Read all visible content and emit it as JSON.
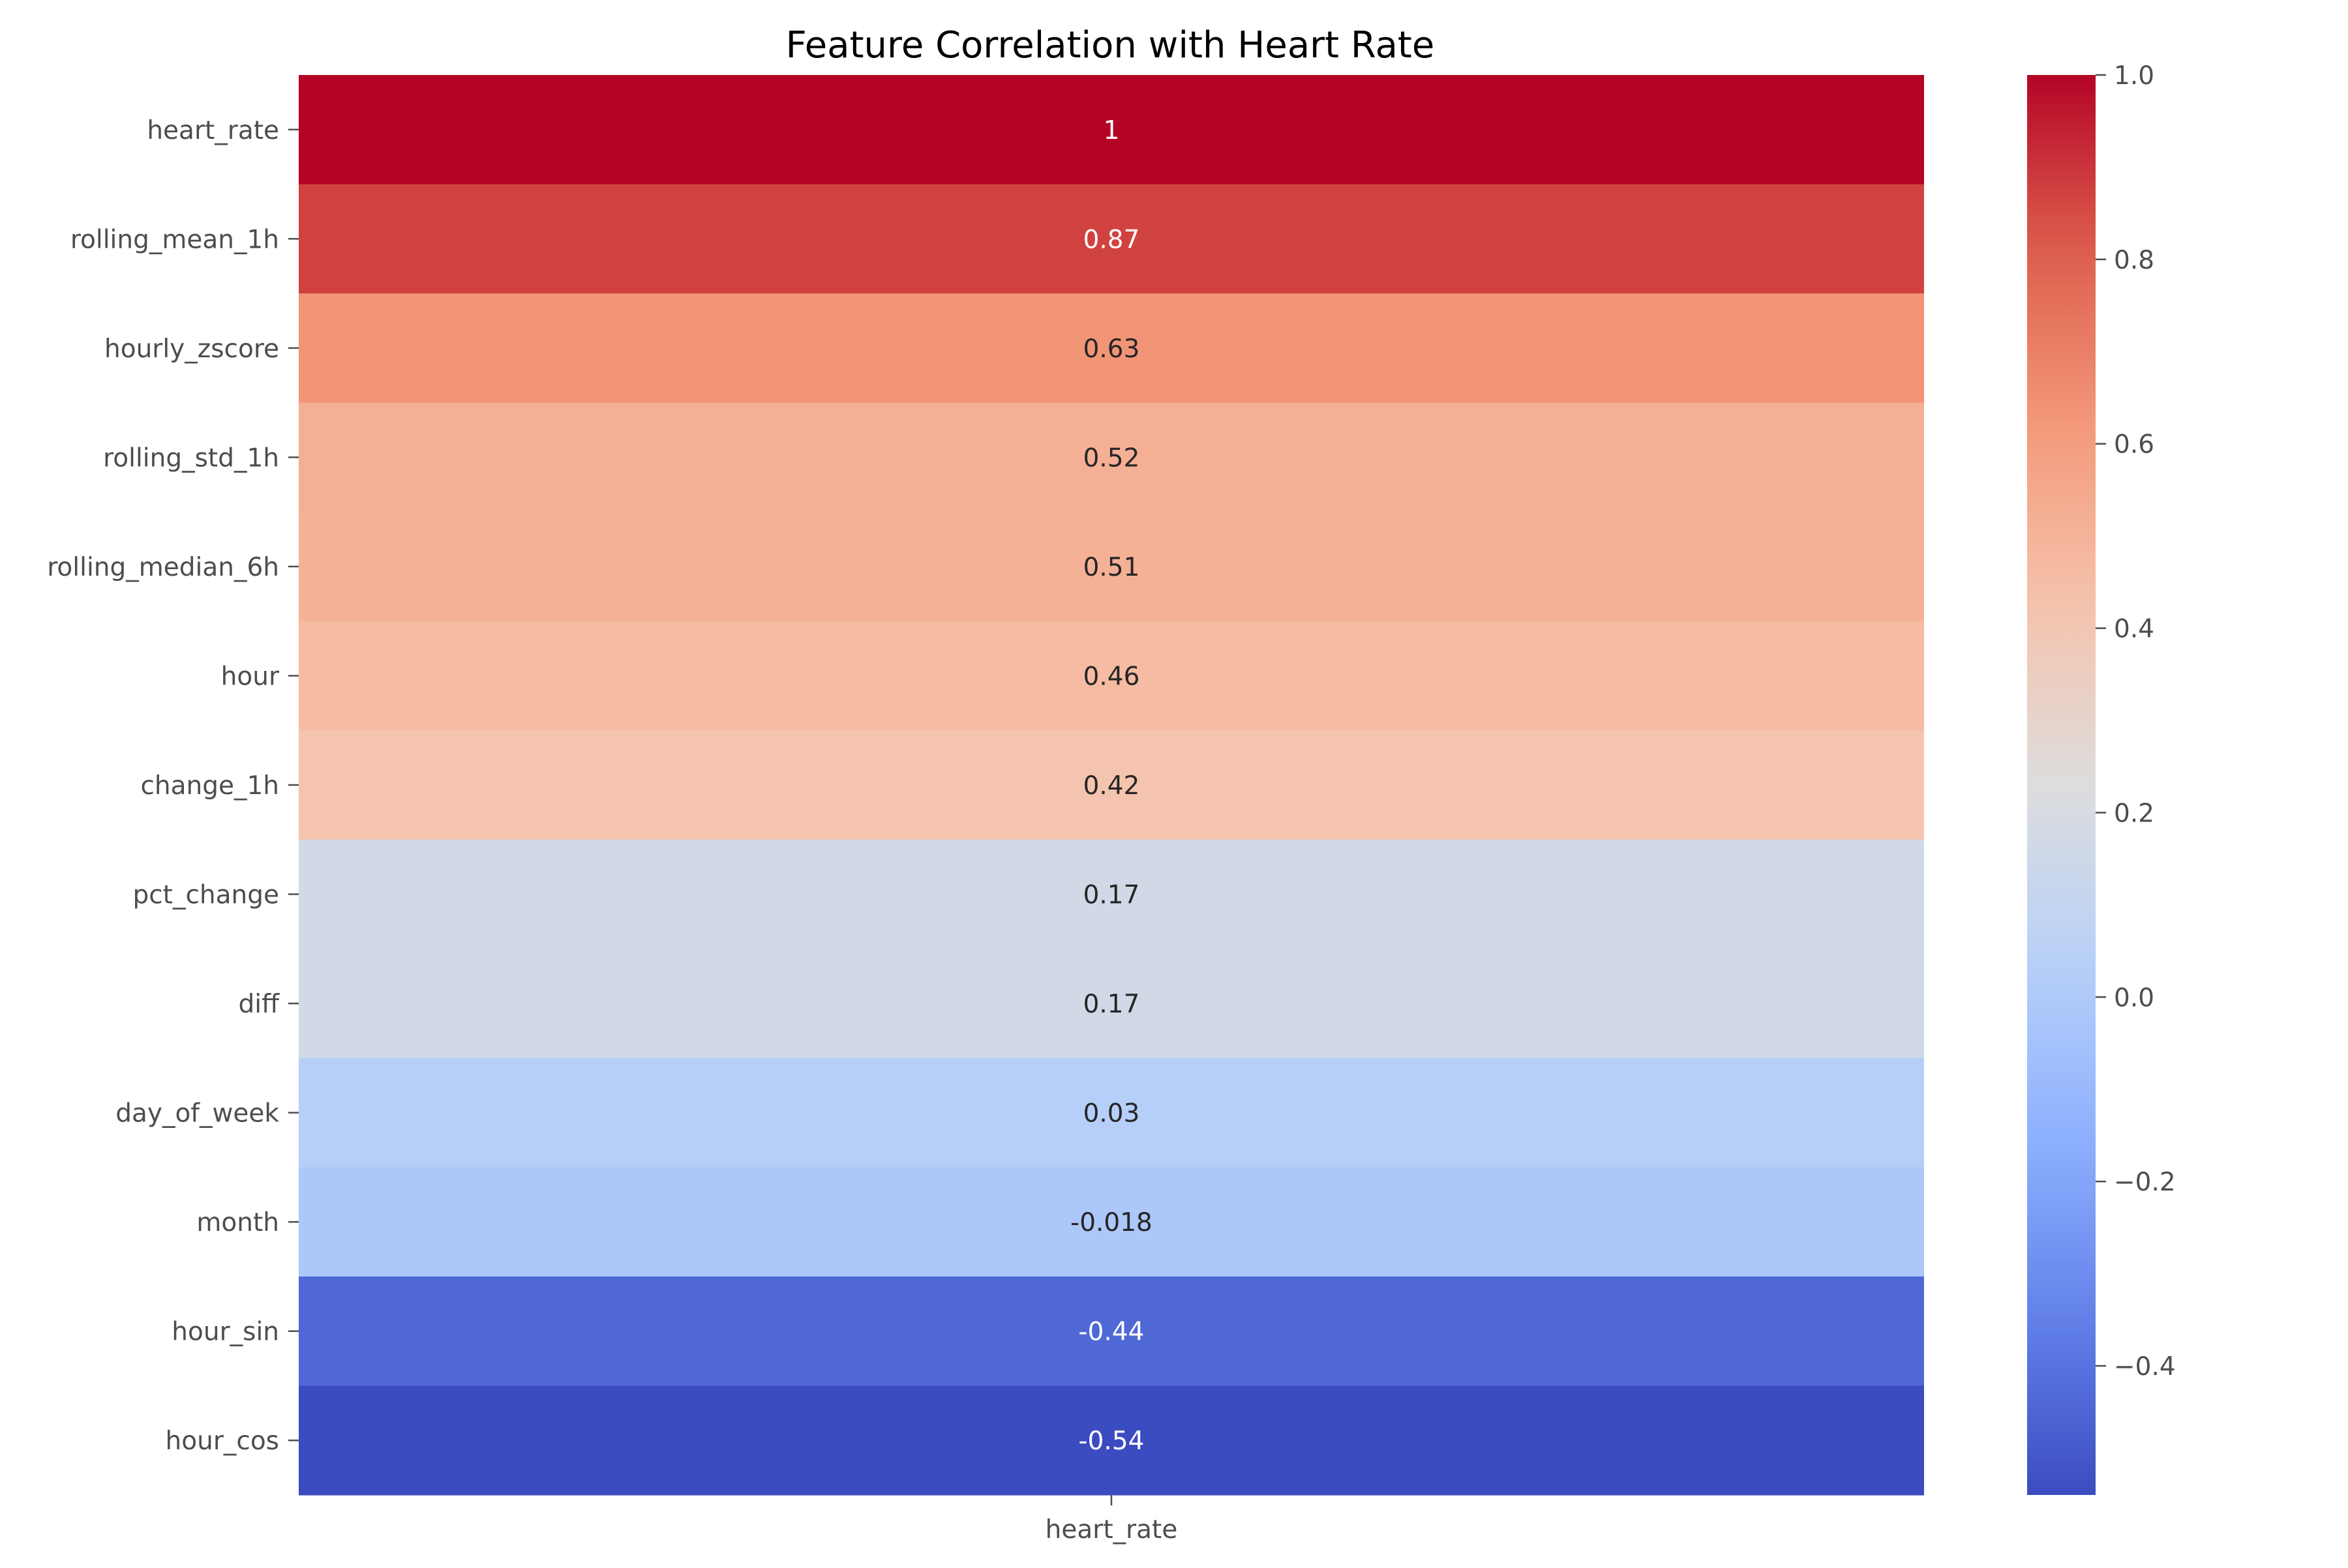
{
  "chart_data": {
    "type": "heatmap",
    "title": "Feature Correlation with Heart Rate",
    "x_categories": [
      "heart_rate"
    ],
    "y_categories": [
      "heart_rate",
      "rolling_mean_1h",
      "hourly_zscore",
      "rolling_std_1h",
      "rolling_median_6h",
      "hour",
      "change_1h",
      "pct_change",
      "diff",
      "day_of_week",
      "month",
      "hour_sin",
      "hour_cos"
    ],
    "values": [
      1.0,
      0.87,
      0.63,
      0.52,
      0.51,
      0.46,
      0.42,
      0.17,
      0.17,
      0.03,
      -0.018,
      -0.44,
      -0.54
    ],
    "cell_labels": [
      "1",
      "0.87",
      "0.63",
      "0.52",
      "0.51",
      "0.46",
      "0.42",
      "0.17",
      "0.17",
      "0.03",
      "-0.018",
      "-0.44",
      "-0.54"
    ],
    "colormap": "coolwarm",
    "color_range": [
      -0.54,
      1.0
    ],
    "colorbar": {
      "ticks": [
        1.0,
        0.8,
        0.6,
        0.4,
        0.2,
        0.0,
        -0.2,
        -0.4
      ],
      "tick_labels": [
        "1.0",
        "0.8",
        "0.6",
        "0.4",
        "0.2",
        "0.0",
        "−0.2",
        "−0.4"
      ],
      "placement": "right"
    },
    "grid": false
  }
}
